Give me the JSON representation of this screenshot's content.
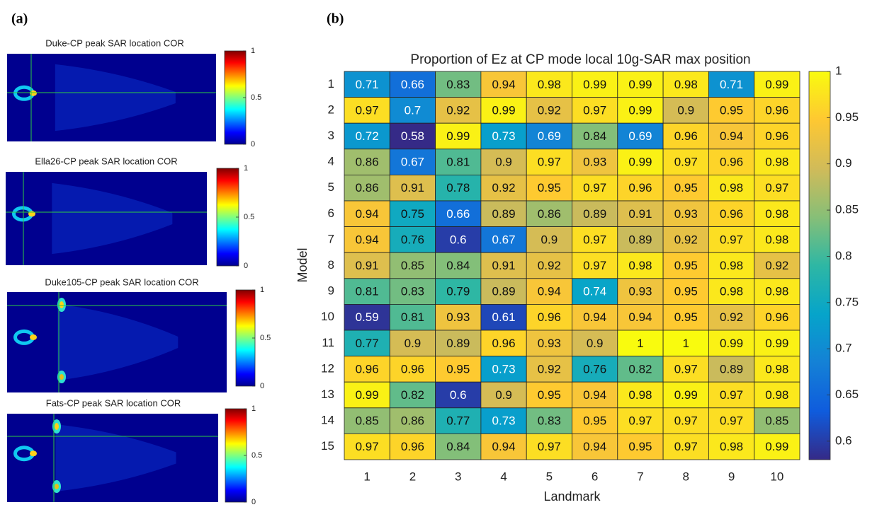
{
  "panel_labels": [
    "(a)",
    "(b)"
  ],
  "chart_data": [
    {
      "type": "image",
      "title": "Duke-CP peak SAR location COR",
      "colormap": "jet",
      "clim": [
        0,
        1
      ],
      "cticks": [
        0,
        0.5,
        1
      ]
    },
    {
      "type": "image",
      "title": "Ella26-CP peak SAR location COR",
      "colormap": "jet",
      "clim": [
        0,
        1
      ],
      "cticks": [
        0,
        0.5,
        1
      ]
    },
    {
      "type": "image",
      "title": "Duke105-CP peak SAR location COR",
      "colormap": "jet",
      "clim": [
        0,
        1
      ],
      "cticks": [
        0,
        0.5,
        1
      ]
    },
    {
      "type": "image",
      "title": "Fats-CP peak SAR location COR",
      "colormap": "jet",
      "clim": [
        0,
        1
      ],
      "cticks": [
        0,
        0.5,
        1
      ]
    },
    {
      "type": "heatmap",
      "title": "Proportion of Ez at CP mode local 10g-SAR max position",
      "xlabel": "Landmark",
      "ylabel": "Model",
      "x": [
        1,
        2,
        3,
        4,
        5,
        6,
        7,
        8,
        9,
        10
      ],
      "y": [
        1,
        2,
        3,
        4,
        5,
        6,
        7,
        8,
        9,
        10,
        11,
        12,
        13,
        14,
        15
      ],
      "values": [
        [
          0.71,
          0.66,
          0.83,
          0.94,
          0.98,
          0.99,
          0.99,
          0.98,
          0.71,
          0.99
        ],
        [
          0.97,
          0.7,
          0.92,
          0.99,
          0.92,
          0.97,
          0.99,
          0.9,
          0.95,
          0.96
        ],
        [
          0.72,
          0.58,
          0.99,
          0.73,
          0.69,
          0.84,
          0.69,
          0.96,
          0.94,
          0.96
        ],
        [
          0.86,
          0.67,
          0.81,
          0.9,
          0.97,
          0.93,
          0.99,
          0.97,
          0.96,
          0.98
        ],
        [
          0.86,
          0.91,
          0.78,
          0.92,
          0.95,
          0.97,
          0.96,
          0.95,
          0.98,
          0.97
        ],
        [
          0.94,
          0.75,
          0.66,
          0.89,
          0.86,
          0.89,
          0.91,
          0.93,
          0.96,
          0.98
        ],
        [
          0.94,
          0.76,
          0.6,
          0.67,
          0.9,
          0.97,
          0.89,
          0.92,
          0.97,
          0.98
        ],
        [
          0.91,
          0.85,
          0.84,
          0.91,
          0.92,
          0.97,
          0.98,
          0.95,
          0.98,
          0.92
        ],
        [
          0.81,
          0.83,
          0.79,
          0.89,
          0.94,
          0.74,
          0.93,
          0.95,
          0.98,
          0.98
        ],
        [
          0.59,
          0.81,
          0.93,
          0.61,
          0.96,
          0.94,
          0.94,
          0.95,
          0.92,
          0.96
        ],
        [
          0.77,
          0.9,
          0.89,
          0.96,
          0.93,
          0.9,
          1,
          1,
          0.99,
          0.99
        ],
        [
          0.96,
          0.96,
          0.95,
          0.73,
          0.92,
          0.76,
          0.82,
          0.97,
          0.89,
          0.98
        ],
        [
          0.99,
          0.82,
          0.6,
          0.9,
          0.95,
          0.94,
          0.98,
          0.99,
          0.97,
          0.98
        ],
        [
          0.85,
          0.86,
          0.77,
          0.73,
          0.83,
          0.95,
          0.97,
          0.97,
          0.97,
          0.85
        ],
        [
          0.97,
          0.96,
          0.84,
          0.94,
          0.97,
          0.94,
          0.95,
          0.97,
          0.98,
          0.99
        ]
      ],
      "colormap": "parula",
      "clim": [
        0.58,
        1
      ],
      "cticks": [
        0.6,
        0.65,
        0.7,
        0.75,
        0.8,
        0.85,
        0.9,
        0.95,
        1
      ]
    }
  ]
}
